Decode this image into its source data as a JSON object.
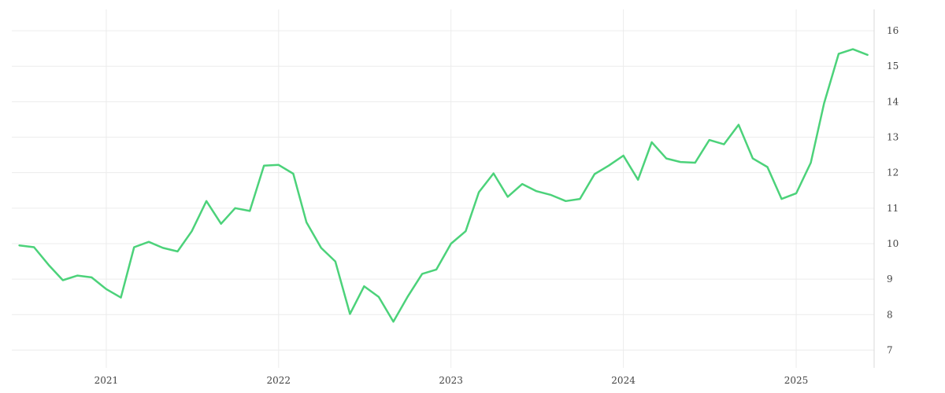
{
  "chart_data": {
    "type": "line",
    "title": "",
    "xlabel": "",
    "ylabel": "",
    "y_axis_side": "right",
    "grid": true,
    "ylim": [
      6.5,
      16.6
    ],
    "xlim": [
      "2020-06-15",
      "2025-06-15"
    ],
    "y_ticks": [
      7,
      8,
      9,
      10,
      11,
      12,
      13,
      14,
      15,
      16
    ],
    "x_ticks": [
      {
        "date": "2021-01-01",
        "label": "2021"
      },
      {
        "date": "2022-01-01",
        "label": "2022"
      },
      {
        "date": "2023-01-01",
        "label": "2023"
      },
      {
        "date": "2024-01-01",
        "label": "2024"
      },
      {
        "date": "2025-01-01",
        "label": "2025"
      }
    ],
    "series": [
      {
        "color": "#4cd27a",
        "points": [
          [
            "2020-07-01",
            9.95
          ],
          [
            "2020-08-01",
            9.9
          ],
          [
            "2020-09-01",
            9.4
          ],
          [
            "2020-10-01",
            8.97
          ],
          [
            "2020-11-01",
            9.1
          ],
          [
            "2020-12-01",
            9.05
          ],
          [
            "2021-01-01",
            8.72
          ],
          [
            "2021-02-01",
            8.48
          ],
          [
            "2021-03-01",
            9.9
          ],
          [
            "2021-04-01",
            10.05
          ],
          [
            "2021-05-01",
            9.88
          ],
          [
            "2021-06-01",
            9.78
          ],
          [
            "2021-07-01",
            10.35
          ],
          [
            "2021-08-01",
            11.2
          ],
          [
            "2021-09-01",
            10.56
          ],
          [
            "2021-10-01",
            11.0
          ],
          [
            "2021-11-01",
            10.92
          ],
          [
            "2021-12-01",
            12.2
          ],
          [
            "2022-01-01",
            12.22
          ],
          [
            "2022-02-01",
            11.97
          ],
          [
            "2022-03-01",
            10.6
          ],
          [
            "2022-04-01",
            9.88
          ],
          [
            "2022-05-01",
            9.5
          ],
          [
            "2022-06-01",
            8.02
          ],
          [
            "2022-07-01",
            8.8
          ],
          [
            "2022-08-01",
            8.5
          ],
          [
            "2022-09-01",
            7.8
          ],
          [
            "2022-10-01",
            8.5
          ],
          [
            "2022-11-01",
            9.15
          ],
          [
            "2022-12-01",
            9.27
          ],
          [
            "2023-01-01",
            10.0
          ],
          [
            "2023-02-01",
            10.35
          ],
          [
            "2023-03-01",
            11.45
          ],
          [
            "2023-04-01",
            11.98
          ],
          [
            "2023-05-01",
            11.32
          ],
          [
            "2023-06-01",
            11.68
          ],
          [
            "2023-07-01",
            11.48
          ],
          [
            "2023-08-01",
            11.37
          ],
          [
            "2023-09-01",
            11.2
          ],
          [
            "2023-10-01",
            11.26
          ],
          [
            "2023-11-01",
            11.96
          ],
          [
            "2023-12-01",
            12.2
          ],
          [
            "2024-01-01",
            12.48
          ],
          [
            "2024-02-01",
            11.8
          ],
          [
            "2024-03-01",
            12.86
          ],
          [
            "2024-04-01",
            12.4
          ],
          [
            "2024-05-01",
            12.3
          ],
          [
            "2024-06-01",
            12.28
          ],
          [
            "2024-07-01",
            12.92
          ],
          [
            "2024-08-01",
            12.8
          ],
          [
            "2024-09-01",
            13.35
          ],
          [
            "2024-10-01",
            12.4
          ],
          [
            "2024-11-01",
            12.16
          ],
          [
            "2024-12-01",
            11.26
          ],
          [
            "2025-01-01",
            11.42
          ],
          [
            "2025-02-01",
            12.28
          ],
          [
            "2025-03-01",
            13.95
          ],
          [
            "2025-04-01",
            15.35
          ],
          [
            "2025-05-01",
            15.48
          ],
          [
            "2025-06-01",
            15.32
          ]
        ]
      }
    ]
  }
}
